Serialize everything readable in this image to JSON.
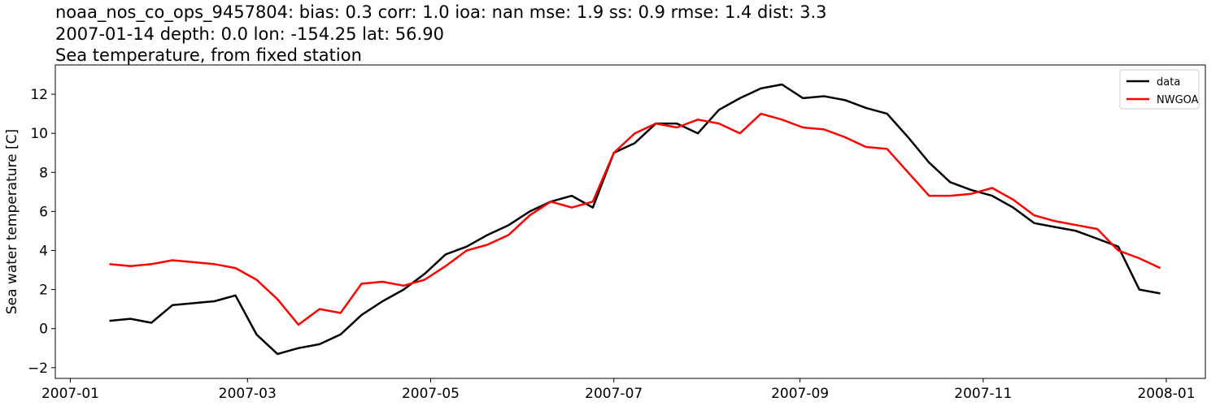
{
  "chart_data": {
    "type": "line",
    "title_lines": [
      "noaa_nos_co_ops_9457804: bias: 0.3  corr: 1.0  ioa: nan  mse: 1.9  ss: 0.9  rmse: 1.4  dist: 3.3",
      "2007-01-14 depth: 0.0 lon: -154.25 lat: 56.90",
      "Sea temperature, from fixed station"
    ],
    "y_label": "Sea water temperature [C]",
    "x": [
      "2007-01-14",
      "2007-01-21",
      "2007-01-28",
      "2007-02-04",
      "2007-02-11",
      "2007-02-18",
      "2007-02-25",
      "2007-03-04",
      "2007-03-11",
      "2007-03-18",
      "2007-03-25",
      "2007-04-01",
      "2007-04-08",
      "2007-04-15",
      "2007-04-22",
      "2007-04-29",
      "2007-05-06",
      "2007-05-13",
      "2007-05-20",
      "2007-05-27",
      "2007-06-03",
      "2007-06-10",
      "2007-06-17",
      "2007-06-24",
      "2007-07-01",
      "2007-07-08",
      "2007-07-15",
      "2007-07-22",
      "2007-07-29",
      "2007-08-05",
      "2007-08-12",
      "2007-08-19",
      "2007-08-26",
      "2007-09-02",
      "2007-09-09",
      "2007-09-16",
      "2007-09-23",
      "2007-09-30",
      "2007-10-07",
      "2007-10-14",
      "2007-10-21",
      "2007-10-28",
      "2007-11-04",
      "2007-11-11",
      "2007-11-18",
      "2007-11-25",
      "2007-12-02",
      "2007-12-09",
      "2007-12-16",
      "2007-12-23",
      "2007-12-30"
    ],
    "series": [
      {
        "name": "data",
        "color": "#000000",
        "values": [
          0.4,
          0.5,
          0.3,
          1.2,
          1.3,
          1.4,
          1.7,
          -0.3,
          -1.3,
          -1.0,
          -0.8,
          -0.3,
          0.7,
          1.4,
          2.0,
          2.8,
          3.8,
          4.2,
          4.8,
          5.3,
          6.0,
          6.5,
          6.8,
          6.2,
          9.0,
          9.5,
          10.5,
          10.5,
          10.0,
          11.2,
          11.8,
          12.3,
          12.5,
          11.8,
          11.9,
          11.7,
          11.3,
          11.0,
          9.8,
          8.5,
          7.5,
          7.1,
          6.8,
          6.2,
          5.4,
          5.2,
          5.0,
          4.6,
          4.2,
          2.0,
          1.8
        ]
      },
      {
        "name": "NWGOA",
        "color": "#ff0000",
        "values": [
          3.3,
          3.2,
          3.3,
          3.5,
          3.4,
          3.3,
          3.1,
          2.5,
          1.5,
          0.2,
          1.0,
          0.8,
          2.3,
          2.4,
          2.2,
          2.5,
          3.2,
          4.0,
          4.3,
          4.8,
          5.8,
          6.5,
          6.2,
          6.5,
          9.0,
          10.0,
          10.5,
          10.3,
          10.7,
          10.5,
          10.0,
          11.0,
          10.7,
          10.3,
          10.2,
          9.8,
          9.3,
          9.2,
          8.0,
          6.8,
          6.8,
          6.9,
          7.2,
          6.6,
          5.8,
          5.5,
          5.3,
          5.1,
          4.0,
          3.6,
          3.1
        ]
      }
    ],
    "xlim": [
      "2006-12-27",
      "2008-01-14"
    ],
    "xticks": [
      {
        "value": "2007-01-01",
        "label": "2007-01"
      },
      {
        "value": "2007-03-01",
        "label": "2007-03"
      },
      {
        "value": "2007-05-01",
        "label": "2007-05"
      },
      {
        "value": "2007-07-01",
        "label": "2007-07"
      },
      {
        "value": "2007-09-01",
        "label": "2007-09"
      },
      {
        "value": "2007-11-01",
        "label": "2007-11"
      },
      {
        "value": "2008-01-01",
        "label": "2008-01"
      }
    ],
    "ylim": [
      -2.55,
      13.5
    ],
    "yticks": [
      {
        "value": -2,
        "label": "−2"
      },
      0,
      2,
      4,
      6,
      8,
      10,
      12
    ],
    "legend": "upper right",
    "grid": false
  }
}
